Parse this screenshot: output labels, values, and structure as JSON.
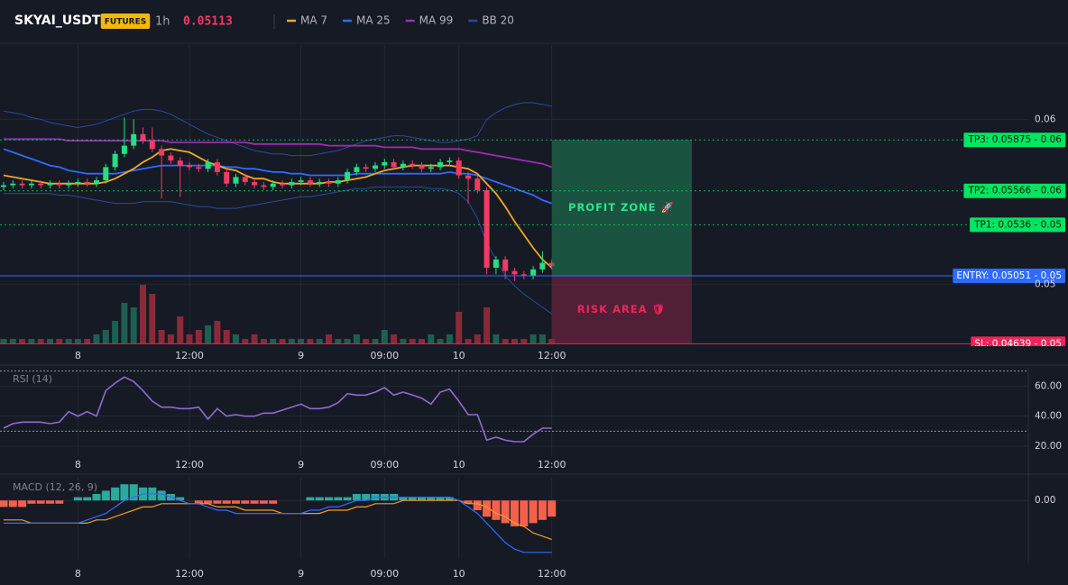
{
  "header": {
    "symbol": "SKYAI_USDT",
    "badge": "FUTURES",
    "interval": "1h",
    "last_price": 0.05113
  },
  "chart_data": [
    {
      "type": "candlestick",
      "categories": [
        null,
        null,
        null,
        null,
        null,
        null,
        null,
        null,
        "8",
        null,
        null,
        null,
        null,
        null,
        null,
        null,
        null,
        null,
        null,
        null,
        "12:00",
        null,
        null,
        null,
        null,
        null,
        null,
        null,
        null,
        null,
        null,
        null,
        "9",
        null,
        null,
        null,
        null,
        null,
        null,
        null,
        null,
        "09:00",
        null,
        null,
        null,
        null,
        null,
        null,
        null,
        "10",
        null,
        null,
        null,
        null,
        null,
        null,
        null,
        null,
        null,
        "12:00"
      ],
      "open": [
        0.0559,
        0.056,
        0.0561,
        0.056,
        0.0561,
        0.056,
        0.0561,
        0.056,
        0.0561,
        0.0562,
        0.0561,
        0.0563,
        0.0571,
        0.0579,
        0.0584,
        0.0591,
        0.0587,
        0.0582,
        0.0578,
        0.0575,
        0.0572,
        0.0571,
        0.057,
        0.0574,
        0.0568,
        0.0561,
        0.0565,
        0.0562,
        0.056,
        0.0559,
        0.0561,
        0.056,
        0.0562,
        0.0563,
        0.0561,
        0.0562,
        0.0561,
        0.0563,
        0.0568,
        0.0571,
        0.057,
        0.0572,
        0.0574,
        0.0571,
        0.0573,
        0.0572,
        0.057,
        0.0571,
        0.0574,
        0.0575,
        0.0566,
        0.0564,
        0.0557,
        0.051,
        0.0515,
        0.0508,
        0.0506,
        0.0505,
        0.0509,
        0.0513
      ],
      "high": [
        0.0562,
        0.0563,
        0.0563,
        0.0563,
        0.0563,
        0.0563,
        0.0563,
        0.0563,
        0.0564,
        0.0564,
        0.0565,
        0.0573,
        0.0581,
        0.0601,
        0.06,
        0.0595,
        0.0595,
        0.0584,
        0.058,
        0.0577,
        0.0574,
        0.0573,
        0.0576,
        0.0576,
        0.057,
        0.0567,
        0.0567,
        0.0564,
        0.0562,
        0.0563,
        0.0563,
        0.0564,
        0.0565,
        0.0565,
        0.0564,
        0.0564,
        0.0565,
        0.057,
        0.0573,
        0.0573,
        0.0574,
        0.0576,
        0.0576,
        0.0575,
        0.0575,
        0.0574,
        0.0573,
        0.0576,
        0.0577,
        0.0577,
        0.0568,
        0.0566,
        0.0559,
        0.0517,
        0.0517,
        0.051,
        0.0508,
        0.0511,
        0.052,
        0.0515
      ],
      "low": [
        0.0557,
        0.0558,
        0.0558,
        0.0558,
        0.0558,
        0.0558,
        0.0558,
        0.0558,
        0.0559,
        0.0559,
        0.0559,
        0.0561,
        0.0569,
        0.0577,
        0.0582,
        0.0585,
        0.058,
        0.0552,
        0.0573,
        0.0553,
        0.0569,
        0.0568,
        0.0568,
        0.0566,
        0.0559,
        0.0559,
        0.056,
        0.0558,
        0.0557,
        0.0557,
        0.0558,
        0.0558,
        0.056,
        0.0559,
        0.0559,
        0.0559,
        0.0559,
        0.0561,
        0.0566,
        0.0568,
        0.0568,
        0.057,
        0.0569,
        0.0569,
        0.057,
        0.0568,
        0.0568,
        0.0569,
        0.0572,
        0.0564,
        0.0549,
        0.0555,
        0.0506,
        0.0506,
        0.0503,
        0.0502,
        0.0503,
        0.0503,
        0.0507,
        0.0509
      ],
      "close": [
        0.056,
        0.0561,
        0.056,
        0.0561,
        0.056,
        0.0561,
        0.056,
        0.0561,
        0.0562,
        0.0561,
        0.0563,
        0.0571,
        0.0579,
        0.0584,
        0.0591,
        0.0587,
        0.0582,
        0.0578,
        0.0575,
        0.0572,
        0.0571,
        0.057,
        0.0574,
        0.0568,
        0.0561,
        0.0565,
        0.0562,
        0.056,
        0.0559,
        0.0561,
        0.056,
        0.0562,
        0.0563,
        0.0561,
        0.0562,
        0.0561,
        0.0563,
        0.0568,
        0.0571,
        0.057,
        0.0572,
        0.0574,
        0.0571,
        0.0573,
        0.0572,
        0.057,
        0.0571,
        0.0574,
        0.0575,
        0.0566,
        0.0564,
        0.0557,
        0.051,
        0.0515,
        0.0508,
        0.0506,
        0.0505,
        0.0509,
        0.0513,
        0.0511
      ],
      "volume": [
        1,
        1,
        1,
        1,
        1,
        1,
        1,
        1,
        1,
        1,
        2,
        3,
        5,
        9,
        8,
        13,
        11,
        3,
        2,
        6,
        2,
        3,
        4,
        5,
        3,
        2,
        1,
        2,
        1,
        1,
        1,
        1,
        1,
        1,
        1,
        2,
        1,
        1,
        2,
        1,
        1,
        3,
        2,
        1,
        1,
        1,
        2,
        1,
        2,
        7,
        1,
        2,
        8,
        2,
        1,
        1,
        1,
        2,
        2,
        1
      ],
      "up_color": "#26de81",
      "down_color": "#f23a62",
      "volume_up_color": "#1d5f50",
      "volume_down_color": "#8a2a38",
      "ylim": [
        0.0463,
        0.0645
      ],
      "yticks": [
        0.05,
        0.06
      ],
      "series": [
        {
          "name": "MA 7",
          "color": "#f5a623",
          "values": [
            0.0566,
            0.0565,
            0.0564,
            0.0563,
            0.0562,
            0.0561,
            0.0561,
            0.0561,
            0.0561,
            0.0561,
            0.0561,
            0.0562,
            0.0564,
            0.0567,
            0.057,
            0.0574,
            0.0577,
            0.0581,
            0.0582,
            0.0581,
            0.058,
            0.0577,
            0.0574,
            0.0572,
            0.057,
            0.0569,
            0.0566,
            0.0564,
            0.0564,
            0.0562,
            0.0561,
            0.0561,
            0.0561,
            0.0561,
            0.0561,
            0.0562,
            0.0562,
            0.0563,
            0.0564,
            0.0565,
            0.0567,
            0.0569,
            0.057,
            0.0571,
            0.0572,
            0.0572,
            0.0572,
            0.0572,
            0.0572,
            0.0571,
            0.057,
            0.0567,
            0.0561,
            0.0555,
            0.0547,
            0.0538,
            0.053,
            0.0522,
            0.0515,
            0.051
          ]
        },
        {
          "name": "MA 25",
          "color": "#2f6bff",
          "values": [
            0.0582,
            0.058,
            0.0578,
            0.0576,
            0.0574,
            0.0572,
            0.0571,
            0.0569,
            0.0568,
            0.0567,
            0.0567,
            0.0567,
            0.0567,
            0.0568,
            0.0569,
            0.057,
            0.0571,
            0.0572,
            0.0572,
            0.0572,
            0.0572,
            0.0572,
            0.0572,
            0.0572,
            0.0571,
            0.0571,
            0.057,
            0.057,
            0.0569,
            0.0568,
            0.0568,
            0.0567,
            0.0567,
            0.0566,
            0.0566,
            0.0566,
            0.0566,
            0.0566,
            0.0567,
            0.0567,
            0.0567,
            0.0567,
            0.0567,
            0.0567,
            0.0567,
            0.0567,
            0.0567,
            0.0567,
            0.0568,
            0.0567,
            0.0567,
            0.0566,
            0.0564,
            0.0562,
            0.056,
            0.0558,
            0.0556,
            0.0554,
            0.0551,
            0.0549
          ]
        },
        {
          "name": "MA 99",
          "color": "#a12bb5",
          "values": [
            0.0588,
            0.0588,
            0.0588,
            0.0588,
            0.0588,
            0.0588,
            0.0588,
            0.0587,
            0.0587,
            0.0587,
            0.0587,
            0.0587,
            0.0587,
            0.0587,
            0.0587,
            0.0587,
            0.0587,
            0.0587,
            0.0586,
            0.0586,
            0.0586,
            0.0586,
            0.0586,
            0.0586,
            0.0586,
            0.0586,
            0.0586,
            0.0585,
            0.0585,
            0.0585,
            0.0585,
            0.0585,
            0.0585,
            0.0585,
            0.0585,
            0.0584,
            0.0584,
            0.0584,
            0.0584,
            0.0584,
            0.0584,
            0.0583,
            0.0583,
            0.0583,
            0.0583,
            0.0582,
            0.0582,
            0.0582,
            0.0582,
            0.0582,
            0.0581,
            0.058,
            0.0579,
            0.0578,
            0.0577,
            0.0576,
            0.0575,
            0.0574,
            0.0573,
            0.0571
          ]
        }
      ],
      "bands": {
        "name": "BB 20",
        "color": "#2a4a9e",
        "upper": [
          0.0605,
          0.0604,
          0.0603,
          0.0601,
          0.06,
          0.0598,
          0.0597,
          0.0596,
          0.0595,
          0.0596,
          0.0597,
          0.0599,
          0.0601,
          0.0603,
          0.0605,
          0.0606,
          0.0606,
          0.0605,
          0.0603,
          0.06,
          0.0597,
          0.0594,
          0.0591,
          0.0589,
          0.0587,
          0.0585,
          0.0583,
          0.0581,
          0.058,
          0.0579,
          0.0579,
          0.0578,
          0.0578,
          0.0578,
          0.0579,
          0.058,
          0.0581,
          0.0583,
          0.0585,
          0.0587,
          0.0588,
          0.0589,
          0.059,
          0.059,
          0.0589,
          0.0588,
          0.0587,
          0.0586,
          0.0586,
          0.0587,
          0.0588,
          0.059,
          0.06,
          0.0604,
          0.0607,
          0.0609,
          0.061,
          0.061,
          0.0609,
          0.0608
        ],
        "lower": [
          0.0555,
          0.0555,
          0.0555,
          0.0555,
          0.0555,
          0.0555,
          0.0554,
          0.0554,
          0.0553,
          0.0552,
          0.0551,
          0.055,
          0.0549,
          0.0549,
          0.0549,
          0.055,
          0.055,
          0.055,
          0.055,
          0.0549,
          0.0548,
          0.0547,
          0.0547,
          0.0546,
          0.0546,
          0.0546,
          0.0547,
          0.0548,
          0.0549,
          0.055,
          0.0551,
          0.0552,
          0.0553,
          0.0553,
          0.0554,
          0.0555,
          0.0556,
          0.0557,
          0.0558,
          0.0558,
          0.0559,
          0.0559,
          0.0559,
          0.0559,
          0.0559,
          0.0559,
          0.0558,
          0.0558,
          0.0557,
          0.0555,
          0.055,
          0.054,
          0.0525,
          0.0515,
          0.0505,
          0.0499,
          0.0494,
          0.049,
          0.0486,
          0.0482
        ]
      },
      "levels": [
        {
          "label": "TP3: 0.05875 - 0.06",
          "value": 0.05875,
          "color": "#00e660",
          "text_color": "#0b1a10",
          "line": "dotted"
        },
        {
          "label": "TP2: 0.05566 - 0.06",
          "value": 0.05566,
          "color": "#00e660",
          "text_color": "#0b1a10",
          "line": "dotted"
        },
        {
          "label": "TP1: 0.0536 - 0.05",
          "value": 0.0536,
          "color": "#00e660",
          "text_color": "#0b1a10",
          "line": "dotted"
        },
        {
          "label": "ENTRY: 0.05051 - 0.05",
          "value": 0.05051,
          "color": "#2f6bff",
          "text_color": "#ffffff",
          "line": "solid"
        },
        {
          "label": "SL: 0.04639 - 0.05",
          "value": 0.04639,
          "color": "#f0245a",
          "text_color": "#ffffff",
          "line": "solid"
        }
      ],
      "zones": [
        {
          "label": "PROFIT ZONE 🚀",
          "from": 0.05051,
          "to": 0.05875,
          "color": "#1f7a55",
          "text_color": "#2ee68a"
        },
        {
          "label": "RISK AREA 🛡",
          "from": 0.04639,
          "to": 0.05051,
          "color": "#7a2445",
          "text_color": "#f0245a"
        }
      ]
    },
    {
      "type": "line",
      "title": "RSI (14)",
      "color": "#8e6bd1",
      "categories": [
        null,
        null,
        null,
        null,
        null,
        null,
        null,
        null,
        "8",
        null,
        null,
        null,
        null,
        null,
        null,
        null,
        null,
        null,
        null,
        null,
        "12:00",
        null,
        null,
        null,
        null,
        null,
        null,
        null,
        null,
        null,
        null,
        null,
        "9",
        null,
        null,
        null,
        null,
        null,
        null,
        null,
        null,
        "09:00",
        null,
        null,
        null,
        null,
        null,
        null,
        null,
        "10",
        null,
        null,
        null,
        null,
        null,
        null,
        null,
        null,
        null,
        "12:00"
      ],
      "values": [
        32,
        35,
        36,
        36,
        36,
        35,
        36,
        43,
        40,
        43,
        40,
        57,
        62,
        66,
        63,
        57,
        50,
        46,
        46,
        45,
        45,
        46,
        38,
        45,
        40,
        41,
        40,
        40,
        42,
        42,
        44,
        46,
        48,
        45,
        45,
        46,
        49,
        55,
        54,
        54,
        56,
        59,
        54,
        56,
        54,
        52,
        48,
        56,
        58,
        50,
        41,
        41,
        24,
        26,
        24,
        23,
        23,
        28,
        32,
        32
      ],
      "ylim": [
        14,
        71
      ],
      "yticks": [
        {
          "value": 20,
          "label": "20.00"
        },
        {
          "value": 40,
          "label": "40.00"
        },
        {
          "value": 60,
          "label": "60.00"
        }
      ],
      "levels": [
        30,
        70
      ]
    },
    {
      "type": "macd",
      "title": "MACD (12, 26, 9)",
      "categories": [
        null,
        null,
        null,
        null,
        null,
        null,
        null,
        null,
        "8",
        null,
        null,
        null,
        null,
        null,
        null,
        null,
        null,
        null,
        null,
        null,
        "12:00",
        null,
        null,
        null,
        null,
        null,
        null,
        null,
        null,
        null,
        null,
        null,
        "9",
        null,
        null,
        null,
        null,
        null,
        null,
        null,
        null,
        "09:00",
        null,
        null,
        null,
        null,
        null,
        null,
        null,
        "10",
        null,
        null,
        null,
        null,
        null,
        null,
        null,
        null,
        null,
        "12:00"
      ],
      "macd": [
        -0.0007,
        -0.0007,
        -0.0007,
        -0.0007,
        -0.0007,
        -0.0007,
        -0.0007,
        -0.0007,
        -0.0007,
        -0.0006,
        -0.0005,
        -0.0004,
        -0.0002,
        0.0,
        0.0001,
        0.0002,
        0.0002,
        0.0002,
        0.0001,
        0.0,
        -0.0001,
        -0.0001,
        -0.0002,
        -0.0003,
        -0.0003,
        -0.0004,
        -0.0004,
        -0.0004,
        -0.0004,
        -0.0004,
        -0.0004,
        -0.0004,
        -0.0004,
        -0.0003,
        -0.0003,
        -0.0002,
        -0.0002,
        -0.0001,
        0.0,
        0.0,
        0.0001,
        0.0001,
        0.0001,
        0.0001,
        0.0001,
        0.0001,
        0.0001,
        0.0001,
        0.0001,
        0.0,
        -0.0002,
        -0.0004,
        -0.0007,
        -0.001,
        -0.0013,
        -0.0015,
        -0.0016,
        -0.0016,
        -0.0016,
        -0.0016
      ],
      "signal": [
        -0.0006,
        -0.0006,
        -0.0006,
        -0.0007,
        -0.0007,
        -0.0007,
        -0.0007,
        -0.0007,
        -0.0007,
        -0.0007,
        -0.0006,
        -0.0006,
        -0.0005,
        -0.0004,
        -0.0003,
        -0.0002,
        -0.0002,
        -0.0001,
        -0.0001,
        -0.0001,
        -0.0001,
        -0.0001,
        -0.0001,
        -0.0002,
        -0.0002,
        -0.0002,
        -0.0003,
        -0.0003,
        -0.0003,
        -0.0003,
        -0.0004,
        -0.0004,
        -0.0004,
        -0.0004,
        -0.0004,
        -0.0003,
        -0.0003,
        -0.0003,
        -0.0002,
        -0.0002,
        -0.0001,
        -0.0001,
        -0.0001,
        0.0,
        0.0,
        0.0,
        0.0,
        0.0,
        0.0,
        0.0,
        -0.0001,
        -0.0001,
        -0.0002,
        -0.0004,
        -0.0005,
        -0.0007,
        -0.0008,
        -0.001,
        -0.0011,
        -0.0012
      ],
      "histogram": [
        -0.0002,
        -0.0002,
        -0.0002,
        -0.0001,
        -0.0001,
        -0.0001,
        -0.0001,
        0.0,
        0.0001,
        0.0001,
        0.0002,
        0.0003,
        0.0004,
        0.0005,
        0.0005,
        0.0004,
        0.0004,
        0.0003,
        0.0002,
        0.0001,
        0.0,
        -0.0001,
        -0.0001,
        -0.0001,
        -0.0001,
        -0.0001,
        -0.0001,
        -0.0001,
        -0.0001,
        -0.0001,
        0.0,
        0.0,
        0.0,
        0.0001,
        0.0001,
        0.0001,
        0.0001,
        0.0001,
        0.0002,
        0.0002,
        0.0002,
        0.0002,
        0.0002,
        0.0001,
        0.0001,
        0.0001,
        0.0001,
        0.0001,
        0.0001,
        0.0,
        -0.0001,
        -0.0003,
        -0.0005,
        -0.0006,
        -0.0007,
        -0.0008,
        -0.0008,
        -0.0007,
        -0.0006,
        -0.0005
      ],
      "macd_color": "#2f6bff",
      "signal_color": "#f59b24",
      "positive_color": "#2ba99c",
      "negative_color": "#f2614c",
      "ylim": [
        -0.0018,
        0.0007
      ],
      "yticks": [
        {
          "value": 0,
          "label": "0.00"
        }
      ]
    }
  ]
}
